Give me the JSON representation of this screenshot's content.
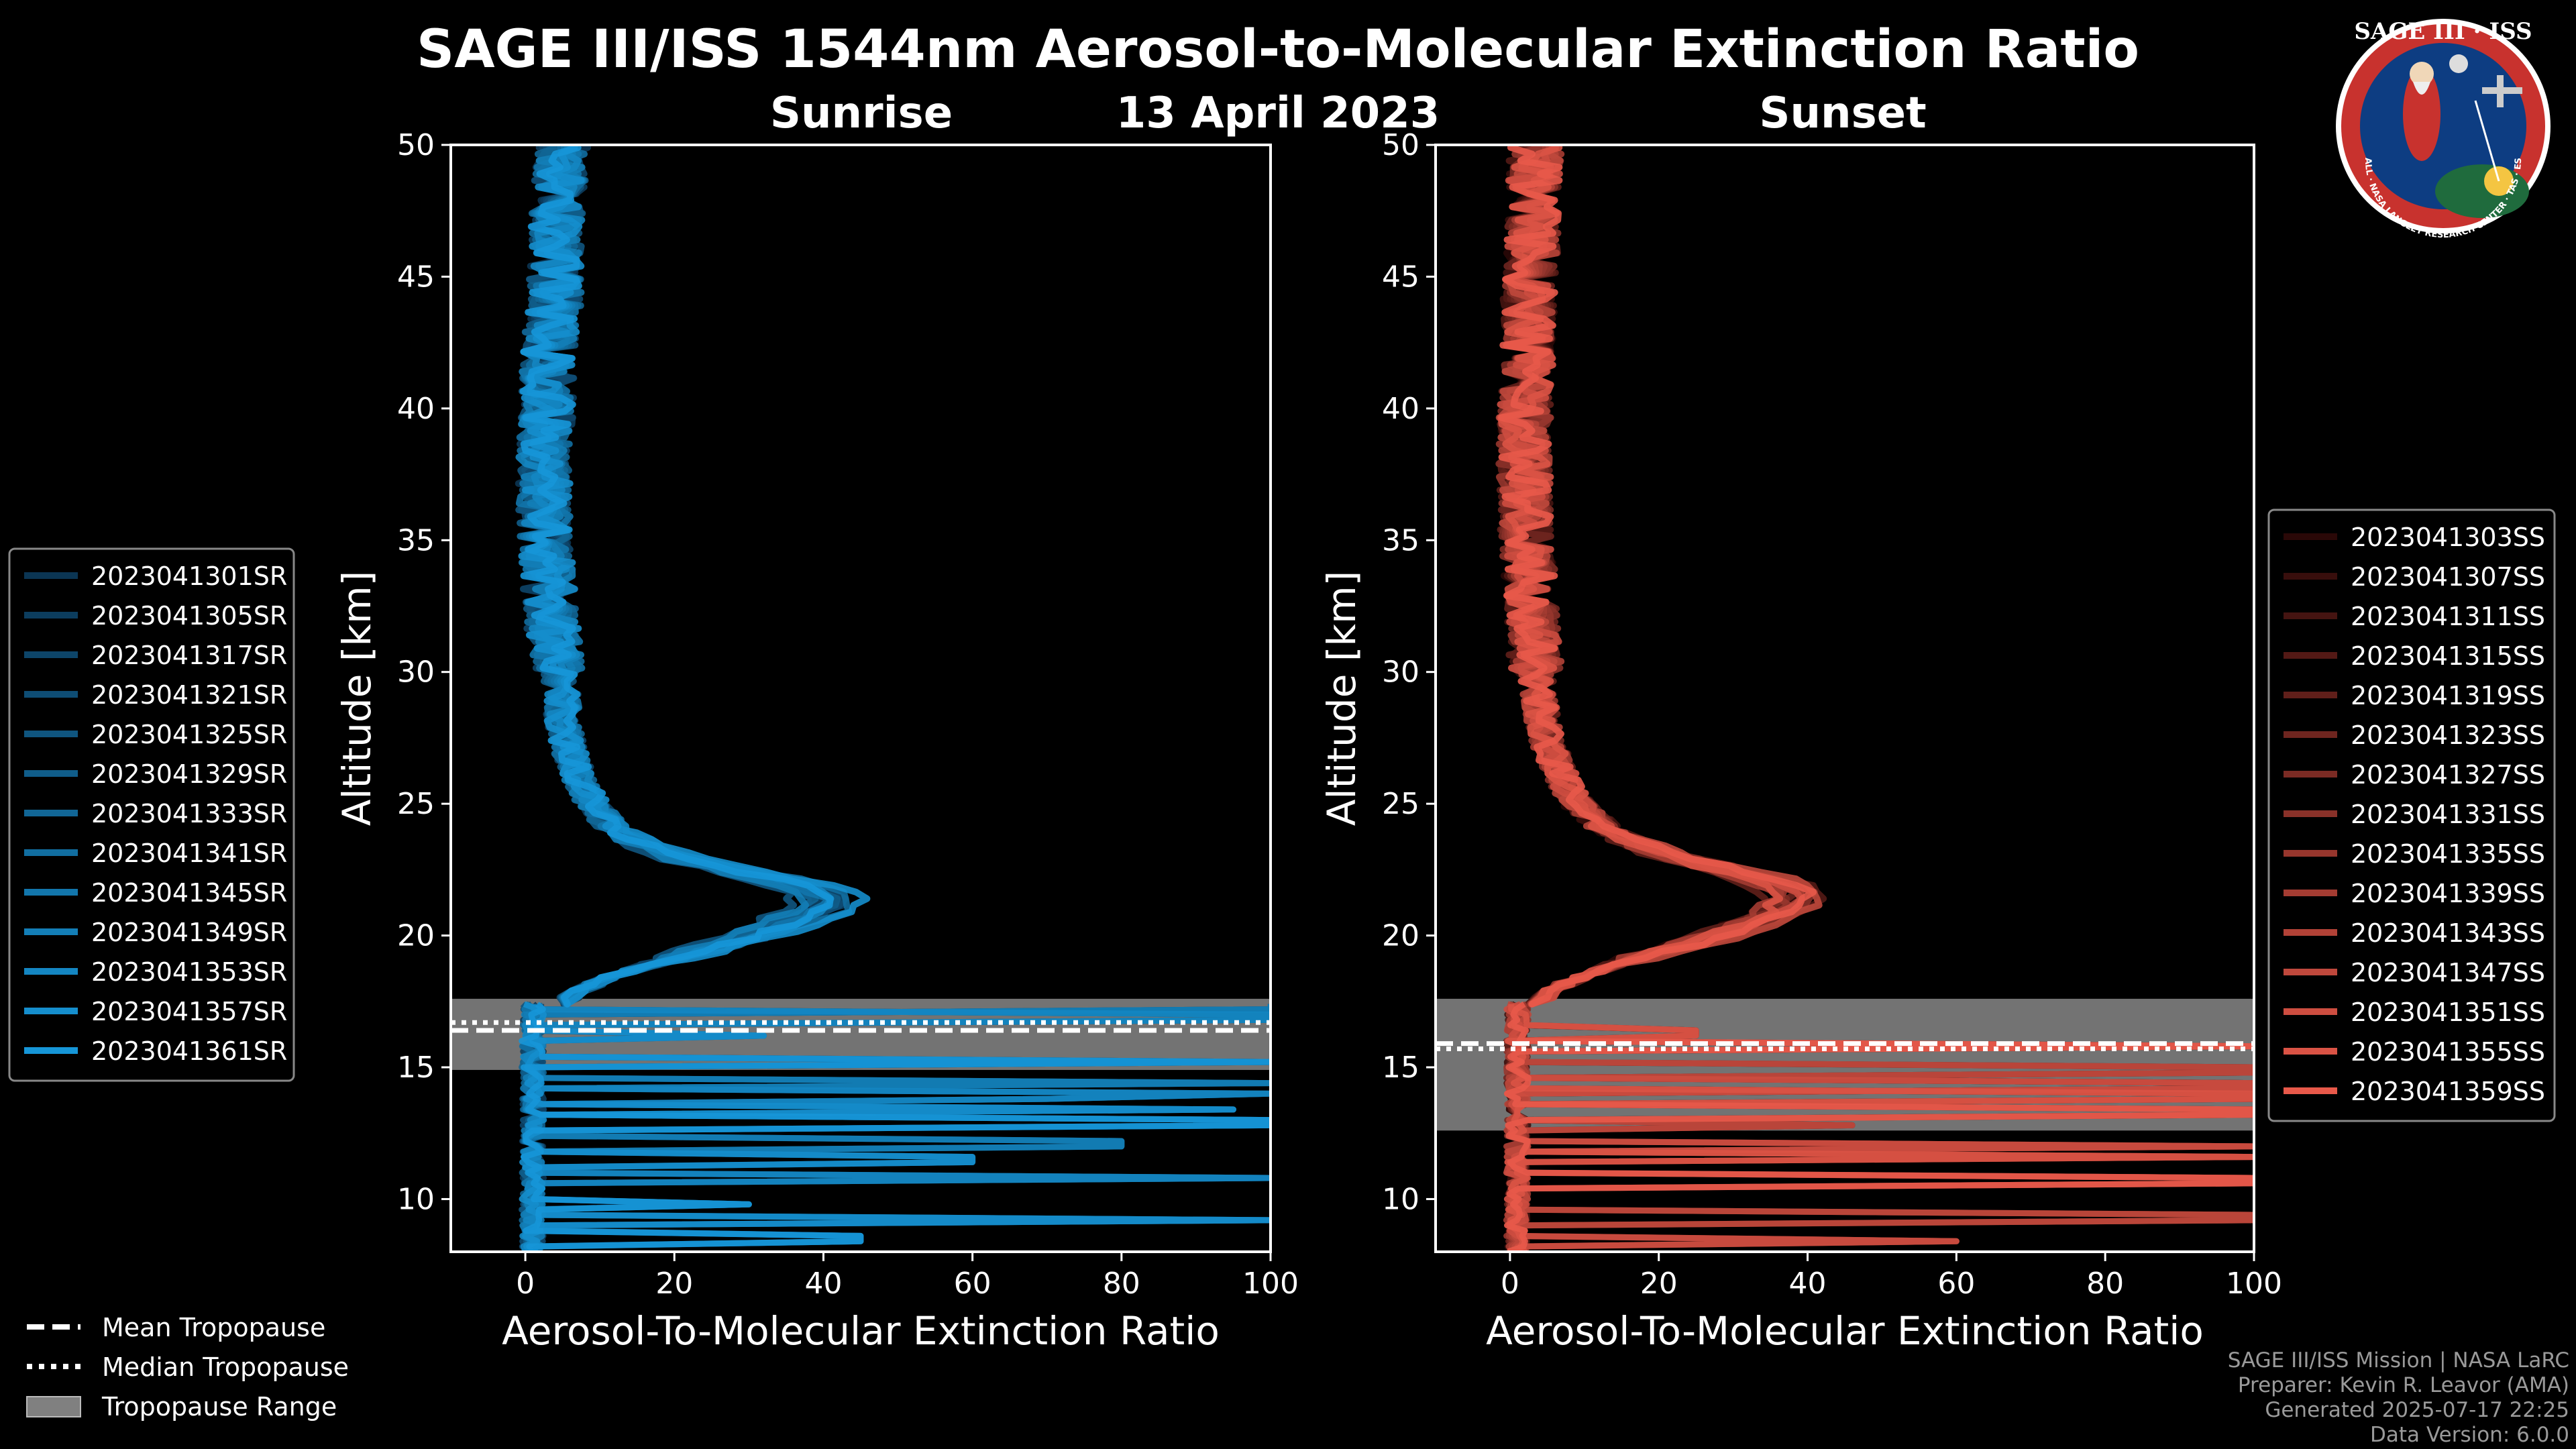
{
  "chart_data": {
    "title": "SAGE III/ISS 1544nm Aerosol-to-Molecular Extinction Ratio",
    "date": "13 April 2023",
    "logo": {
      "text": "SAGE III · ISS",
      "ring_text": "BALL · NASA LANGLEY RESEARCH CENTER · TAS · ESA"
    },
    "footer": [
      "SAGE III/ISS Mission | NASA LaRC",
      "Preparer: Kevin R. Leavor (AMA)",
      "Generated 2025-07-17 22:25",
      "Data Version: 6.0.0"
    ],
    "shared_legend": [
      {
        "label": "Mean Tropopause",
        "style": "dashed"
      },
      {
        "label": "Median Tropopause",
        "style": "dotted"
      },
      {
        "label": "Tropopause Range",
        "style": "patch"
      }
    ],
    "panels": [
      {
        "type": "line",
        "subtitle": "Sunrise",
        "xlabel": "Aerosol-To-Molecular Extinction Ratio",
        "ylabel": "Altitude [km]",
        "xlim": [
          -10,
          100
        ],
        "ylim": [
          8,
          50
        ],
        "xticks": [
          0,
          20,
          40,
          60,
          80,
          100
        ],
        "yticks": [
          10,
          15,
          20,
          25,
          30,
          35,
          40,
          45,
          50
        ],
        "tropopause": {
          "mean": 16.4,
          "median": 16.7,
          "range": [
            14.9,
            17.6
          ]
        },
        "color_start": "#0b3553",
        "color_end": "#1696d8",
        "mean_profile": [
          [
            8,
            1.5
          ],
          [
            10,
            1
          ],
          [
            12,
            1
          ],
          [
            14,
            1
          ],
          [
            15,
            1.5
          ],
          [
            16,
            2
          ],
          [
            17,
            4
          ],
          [
            17.5,
            5
          ],
          [
            18,
            8
          ],
          [
            18.5,
            12
          ],
          [
            19,
            18
          ],
          [
            19.5,
            25
          ],
          [
            20,
            31
          ],
          [
            20.5,
            36
          ],
          [
            21,
            40
          ],
          [
            21.5,
            41
          ],
          [
            22,
            36
          ],
          [
            22.5,
            28
          ],
          [
            23,
            20
          ],
          [
            23.5,
            16
          ],
          [
            24,
            12
          ],
          [
            25,
            9
          ],
          [
            26,
            7
          ],
          [
            27,
            6
          ],
          [
            28,
            5
          ],
          [
            29,
            5
          ],
          [
            30,
            4.5
          ],
          [
            32,
            3.5
          ],
          [
            34,
            3
          ],
          [
            36,
            2.5
          ],
          [
            38,
            2.5
          ],
          [
            40,
            3
          ],
          [
            42,
            3
          ],
          [
            44,
            4
          ],
          [
            46,
            4
          ],
          [
            48,
            4.5
          ],
          [
            50,
            5
          ]
        ],
        "peaks": [
          38,
          42,
          40,
          43,
          36,
          41,
          39,
          44,
          40,
          37,
          42,
          45,
          41
        ],
        "spikes": [
          [
            8.5,
            45
          ],
          [
            9.2,
            100
          ],
          [
            10.8,
            100
          ],
          [
            12.1,
            80
          ],
          [
            12.9,
            100
          ],
          [
            13.4,
            95
          ],
          [
            14.0,
            100
          ],
          [
            14.4,
            100
          ],
          [
            15.2,
            100
          ],
          [
            16.2,
            32
          ],
          [
            16.9,
            100
          ],
          [
            17.3,
            100
          ],
          [
            9.8,
            30
          ],
          [
            11.5,
            60
          ],
          [
            13.8,
            70
          ]
        ],
        "series": [
          {
            "name": "2023041301SR"
          },
          {
            "name": "2023041305SR"
          },
          {
            "name": "2023041317SR"
          },
          {
            "name": "2023041321SR"
          },
          {
            "name": "2023041325SR"
          },
          {
            "name": "2023041329SR"
          },
          {
            "name": "2023041333SR"
          },
          {
            "name": "2023041341SR"
          },
          {
            "name": "2023041345SR"
          },
          {
            "name": "2023041349SR"
          },
          {
            "name": "2023041353SR"
          },
          {
            "name": "2023041357SR"
          },
          {
            "name": "2023041361SR"
          }
        ]
      },
      {
        "type": "line",
        "subtitle": "Sunset",
        "xlabel": "Aerosol-To-Molecular Extinction Ratio",
        "ylabel": "Altitude [km]",
        "xlim": [
          -10,
          100
        ],
        "ylim": [
          8,
          50
        ],
        "xticks": [
          0,
          20,
          40,
          60,
          80,
          100
        ],
        "yticks": [
          10,
          15,
          20,
          25,
          30,
          35,
          40,
          45,
          50
        ],
        "tropopause": {
          "mean": 15.9,
          "median": 15.7,
          "range": [
            12.6,
            17.6
          ]
        },
        "color_start": "#2a0807",
        "color_end": "#e8594a",
        "mean_profile": [
          [
            8,
            1
          ],
          [
            10,
            1
          ],
          [
            12,
            1
          ],
          [
            14,
            1
          ],
          [
            15,
            1
          ],
          [
            16,
            1.5
          ],
          [
            17,
            3
          ],
          [
            17.5,
            4
          ],
          [
            18,
            6
          ],
          [
            18.5,
            10
          ],
          [
            19,
            15
          ],
          [
            19.5,
            22
          ],
          [
            20,
            28
          ],
          [
            20.5,
            33
          ],
          [
            21,
            37
          ],
          [
            21.5,
            39
          ],
          [
            22,
            36
          ],
          [
            22.5,
            29
          ],
          [
            23,
            22
          ],
          [
            23.5,
            17
          ],
          [
            24,
            13
          ],
          [
            25,
            9
          ],
          [
            26,
            7
          ],
          [
            27,
            5.5
          ],
          [
            28,
            4.5
          ],
          [
            29,
            4
          ],
          [
            30,
            3.5
          ],
          [
            32,
            3
          ],
          [
            34,
            2.5
          ],
          [
            36,
            2
          ],
          [
            38,
            2
          ],
          [
            40,
            2
          ],
          [
            42,
            2.5
          ],
          [
            44,
            2.5
          ],
          [
            46,
            3
          ],
          [
            48,
            3
          ],
          [
            50,
            3.5
          ]
        ],
        "peaks": [
          36,
          40,
          38,
          42,
          35,
          39,
          37,
          41,
          38,
          36,
          40,
          43,
          39,
          37,
          41
        ],
        "spikes": [
          [
            8.4,
            60
          ],
          [
            9.3,
            100
          ],
          [
            10.7,
            100
          ],
          [
            11.6,
            100
          ],
          [
            12.0,
            100
          ],
          [
            12.8,
            46
          ],
          [
            13.3,
            100
          ],
          [
            13.9,
            100
          ],
          [
            14.3,
            100
          ],
          [
            14.9,
            100
          ],
          [
            15.8,
            100
          ],
          [
            16.3,
            25
          ]
        ],
        "series": [
          {
            "name": "2023041303SS"
          },
          {
            "name": "2023041307SS"
          },
          {
            "name": "2023041311SS"
          },
          {
            "name": "2023041315SS"
          },
          {
            "name": "2023041319SS"
          },
          {
            "name": "2023041323SS"
          },
          {
            "name": "2023041327SS"
          },
          {
            "name": "2023041331SS"
          },
          {
            "name": "2023041335SS"
          },
          {
            "name": "2023041339SS"
          },
          {
            "name": "2023041343SS"
          },
          {
            "name": "2023041347SS"
          },
          {
            "name": "2023041351SS"
          },
          {
            "name": "2023041355SS"
          },
          {
            "name": "2023041359SS"
          }
        ]
      }
    ]
  }
}
